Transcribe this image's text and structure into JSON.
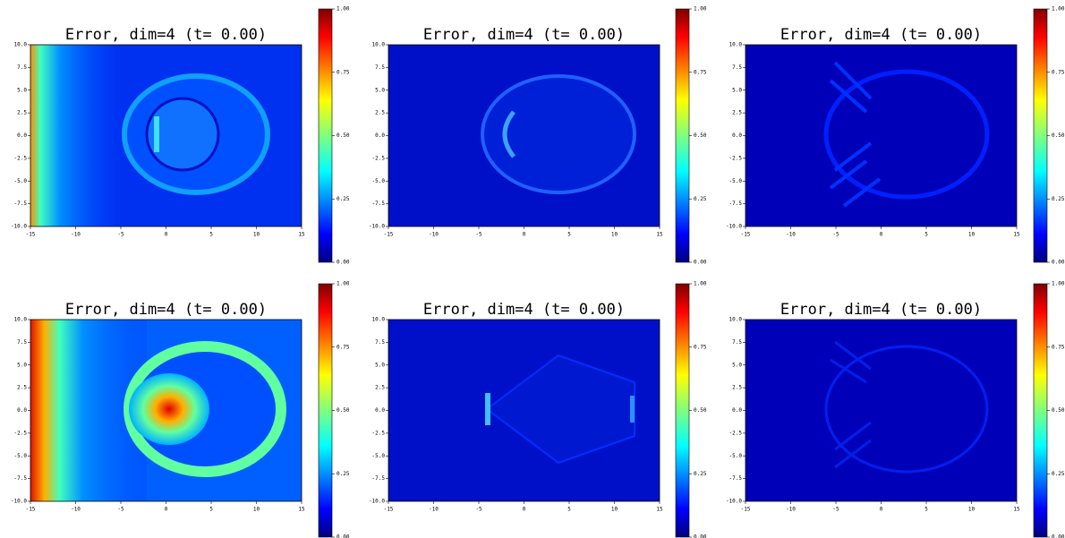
{
  "chart_data": [
    {
      "type": "heatmap",
      "title": "Error, dim=4 (t= 0.00)",
      "colormap": "jet",
      "xlim": [
        -15,
        15
      ],
      "ylim": [
        -10,
        10
      ],
      "xticks": [
        -15,
        -10,
        -5,
        0,
        5,
        10,
        15
      ],
      "yticks": [
        {
          "value": -10,
          "label": "-10.0"
        },
        -7.5,
        {
          "value": -5,
          "label": "-5.0"
        },
        -2.5,
        {
          "value": 0,
          "label": "0.0"
        },
        2.5,
        {
          "value": 5,
          "label": "5.0"
        },
        7.5,
        {
          "value": 10,
          "label": "10.0"
        }
      ],
      "clim": [
        0,
        1
      ],
      "cticks": [
        {
          "value": 0,
          "label": "0.00"
        },
        {
          "value": 0.25,
          "label": "0.25"
        },
        {
          "value": 0.5,
          "label": "0.50"
        },
        {
          "value": 0.75,
          "label": "0.75"
        },
        {
          "value": 1,
          "label": "1.00"
        }
      ]
    },
    {
      "type": "heatmap",
      "title": "Error, dim=4 (t= 0.00)",
      "colormap": "jet",
      "xlim": [
        -15,
        15
      ],
      "ylim": [
        -10,
        10
      ],
      "xticks": [
        -15,
        -10,
        -5,
        0,
        5,
        10,
        15
      ],
      "yticks": [
        {
          "value": -10,
          "label": "-10.0"
        },
        -7.5,
        {
          "value": -5,
          "label": "-5.0"
        },
        -2.5,
        {
          "value": 0,
          "label": "0.0"
        },
        2.5,
        {
          "value": 5,
          "label": "5.0"
        },
        7.5,
        {
          "value": 10,
          "label": "10.0"
        }
      ],
      "clim": [
        0,
        1
      ],
      "cticks": [
        {
          "value": 0,
          "label": "0.00"
        },
        {
          "value": 0.25,
          "label": "0.25"
        },
        {
          "value": 0.5,
          "label": "0.50"
        },
        {
          "value": 0.75,
          "label": "0.75"
        },
        {
          "value": 1,
          "label": "1.00"
        }
      ]
    },
    {
      "type": "heatmap",
      "title": "Error, dim=4 (t= 0.00)",
      "colormap": "jet",
      "xlim": [
        -15,
        15
      ],
      "ylim": [
        -10,
        10
      ],
      "xticks": [
        -15,
        -10,
        -5,
        0,
        5,
        10,
        15
      ],
      "yticks": [
        {
          "value": -10,
          "label": "-10.0"
        },
        -7.5,
        {
          "value": -5,
          "label": "-5.0"
        },
        -2.5,
        {
          "value": 0,
          "label": "0.0"
        },
        2.5,
        {
          "value": 5,
          "label": "5.0"
        },
        7.5,
        {
          "value": 10,
          "label": "10.0"
        }
      ],
      "clim": [
        0,
        1
      ],
      "cticks": [
        {
          "value": 0,
          "label": "0.00"
        },
        {
          "value": 0.25,
          "label": "0.25"
        },
        {
          "value": 0.5,
          "label": "0.50"
        },
        {
          "value": 0.75,
          "label": "0.75"
        },
        {
          "value": 1,
          "label": "1.00"
        }
      ]
    },
    {
      "type": "heatmap",
      "title": "Error, dim=4 (t= 0.00)",
      "colormap": "jet",
      "xlim": [
        -15,
        15
      ],
      "ylim": [
        -10,
        10
      ],
      "xticks": [
        -15,
        -10,
        -5,
        0,
        5,
        10,
        15
      ],
      "yticks": [
        {
          "value": -10,
          "label": "-10.0"
        },
        -7.5,
        {
          "value": -5,
          "label": "-5.0"
        },
        -2.5,
        {
          "value": 0,
          "label": "0.0"
        },
        2.5,
        {
          "value": 5,
          "label": "5.0"
        },
        7.5,
        {
          "value": 10,
          "label": "10.0"
        }
      ],
      "clim": [
        0,
        1
      ],
      "cticks": [
        {
          "value": 0,
          "label": "0.00"
        },
        {
          "value": 0.25,
          "label": "0.25"
        },
        {
          "value": 0.5,
          "label": "0.50"
        },
        {
          "value": 0.75,
          "label": "0.75"
        },
        {
          "value": 1,
          "label": "1.00"
        }
      ]
    },
    {
      "type": "heatmap",
      "title": "Error, dim=4 (t= 0.00)",
      "colormap": "jet",
      "xlim": [
        -15,
        15
      ],
      "ylim": [
        -10,
        10
      ],
      "xticks": [
        -15,
        -10,
        -5,
        0,
        5,
        10,
        15
      ],
      "yticks": [
        {
          "value": -10,
          "label": "-10.0"
        },
        -7.5,
        {
          "value": -5,
          "label": "-5.0"
        },
        -2.5,
        {
          "value": 0,
          "label": "0.0"
        },
        2.5,
        {
          "value": 5,
          "label": "5.0"
        },
        7.5,
        {
          "value": 10,
          "label": "10.0"
        }
      ],
      "clim": [
        0,
        1
      ],
      "cticks": [
        {
          "value": 0,
          "label": "0.00"
        },
        {
          "value": 0.25,
          "label": "0.25"
        },
        {
          "value": 0.5,
          "label": "0.50"
        },
        {
          "value": 0.75,
          "label": "0.75"
        },
        {
          "value": 1,
          "label": "1.00"
        }
      ]
    },
    {
      "type": "heatmap",
      "title": "Error, dim=4 (t= 0.00)",
      "colormap": "jet",
      "xlim": [
        -15,
        15
      ],
      "ylim": [
        -10,
        10
      ],
      "xticks": [
        -15,
        -10,
        -5,
        0,
        5,
        10,
        15
      ],
      "yticks": [
        {
          "value": -10,
          "label": "-10.0"
        },
        -7.5,
        {
          "value": -5,
          "label": "-5.0"
        },
        -2.5,
        {
          "value": 0,
          "label": "0.0"
        },
        2.5,
        {
          "value": 5,
          "label": "5.0"
        },
        7.5,
        {
          "value": 10,
          "label": "10.0"
        }
      ],
      "clim": [
        0,
        1
      ],
      "cticks": [
        {
          "value": 0,
          "label": "0.00"
        },
        {
          "value": 0.25,
          "label": "0.25"
        },
        {
          "value": 0.5,
          "label": "0.50"
        },
        {
          "value": 0.75,
          "label": "0.75"
        },
        {
          "value": 1,
          "label": "1.00"
        }
      ]
    }
  ]
}
